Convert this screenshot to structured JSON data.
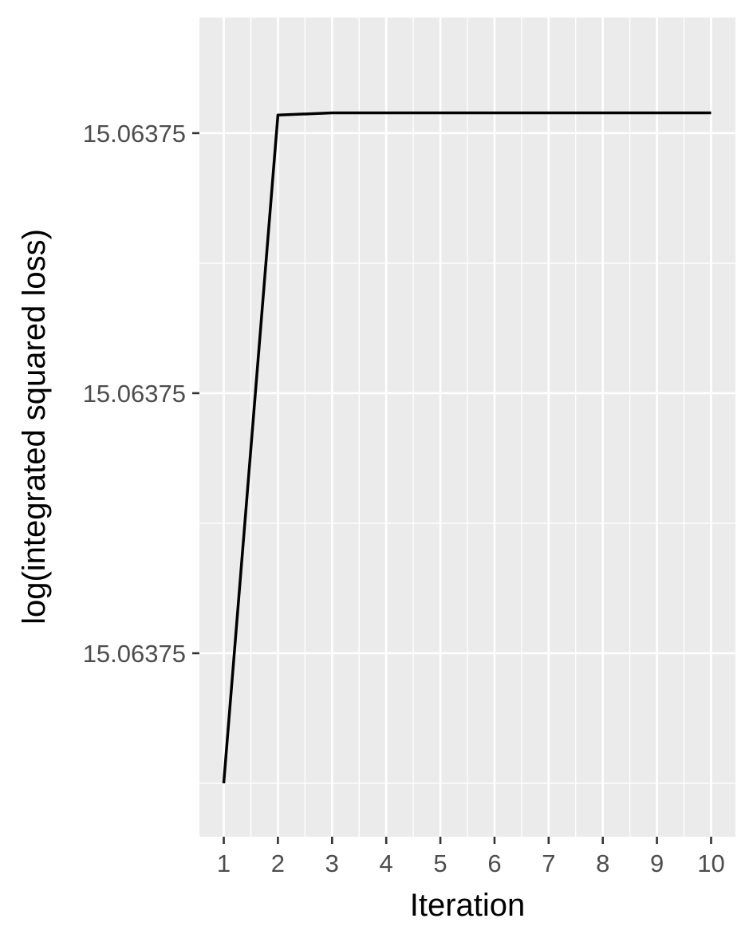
{
  "chart_data": {
    "type": "line",
    "title": "",
    "xlabel": "Iteration",
    "ylabel": "log(integrated squared loss)",
    "x": [
      1,
      2,
      3,
      4,
      5,
      6,
      7,
      8,
      9,
      10
    ],
    "series": [
      {
        "values": [
          0.04,
          0.965,
          0.968,
          0.968,
          0.968,
          0.968,
          0.968,
          0.968,
          0.968,
          0.968
        ]
      }
    ],
    "x_ticks": [
      "1",
      "2",
      "3",
      "4",
      "5",
      "6",
      "7",
      "8",
      "9",
      "10"
    ],
    "y_ticks": [
      {
        "value": 0.22,
        "label": "15.06375"
      },
      {
        "value": 0.58,
        "label": "15.06375"
      },
      {
        "value": 0.94,
        "label": "15.06375"
      }
    ],
    "xlim": [
      0.55,
      10.45
    ],
    "ylim": [
      -0.034,
      1.1
    ],
    "grid": true,
    "colors": {
      "panel": "#EBEBEB",
      "grid": "#FFFFFF",
      "line": "#000000",
      "tick_text": "#4D4D4D"
    }
  }
}
